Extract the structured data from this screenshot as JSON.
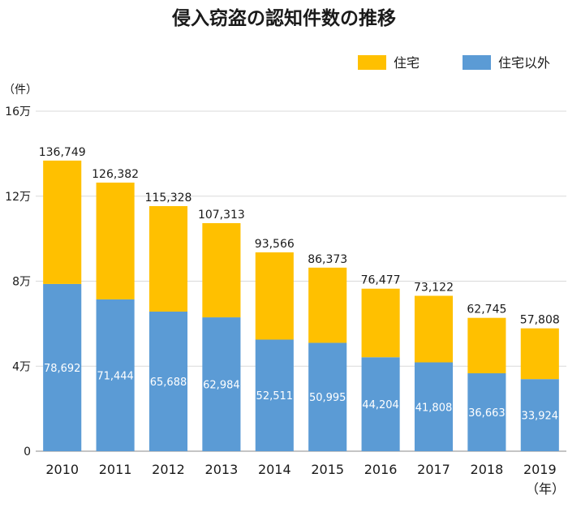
{
  "chart_data": {
    "type": "bar",
    "stacked": true,
    "title": "侵入窃盗の認知件数の推移",
    "ylabel": "（件）",
    "xlabel": "（年）",
    "ylim": [
      0,
      160000
    ],
    "yticks": [
      {
        "value": 0,
        "label": "0"
      },
      {
        "value": 40000,
        "label": "4万"
      },
      {
        "value": 80000,
        "label": "8万"
      },
      {
        "value": 120000,
        "label": "12万"
      },
      {
        "value": 160000,
        "label": "16万"
      }
    ],
    "grid": true,
    "legend_position": "top-right",
    "categories": [
      "2010",
      "2011",
      "2012",
      "2013",
      "2014",
      "2015",
      "2016",
      "2017",
      "2018",
      "2019"
    ],
    "series": [
      {
        "name": "住宅以外",
        "color": "#5b9bd5",
        "values": [
          78692,
          71444,
          65688,
          62984,
          52511,
          50995,
          44204,
          41808,
          36663,
          33924
        ],
        "labels": [
          "78,692",
          "71,444",
          "65,688",
          "62,984",
          "52,511",
          "50,995",
          "44,204",
          "41,808",
          "36,663",
          "33,924"
        ]
      },
      {
        "name": "住宅",
        "color": "#ffc000",
        "values": [
          58057,
          54938,
          49640,
          44329,
          41055,
          35378,
          32273,
          31314,
          26082,
          23884
        ]
      }
    ],
    "legend_order": [
      1,
      0
    ],
    "totals": [
      136749,
      126382,
      115328,
      107313,
      93566,
      86373,
      76477,
      73122,
      62745,
      57808
    ],
    "total_labels": [
      "136,749",
      "126,382",
      "115,328",
      "107,313",
      "93,566",
      "86,373",
      "76,477",
      "73,122",
      "62,745",
      "57,808"
    ]
  }
}
